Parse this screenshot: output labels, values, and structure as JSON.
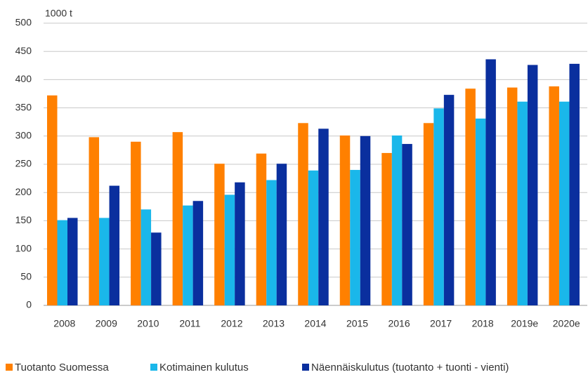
{
  "chart_data": {
    "type": "bar",
    "y_label": "1000 t",
    "categories": [
      "2008",
      "2009",
      "2010",
      "2011",
      "2012",
      "2013",
      "2014",
      "2015",
      "2016",
      "2017",
      "2018",
      "2019e",
      "2020e"
    ],
    "series": [
      {
        "name": "Tuotanto Suomessa",
        "color": "#ff8000",
        "values": [
          372,
          298,
          290,
          307,
          251,
          269,
          323,
          301,
          270,
          323,
          384,
          386,
          388
        ]
      },
      {
        "name": "Kotimainen kulutus",
        "color": "#1ab7ea",
        "values": [
          151,
          155,
          170,
          177,
          196,
          222,
          239,
          240,
          301,
          349,
          331,
          361,
          361
        ]
      },
      {
        "name": "Näennäiskulutus (tuotanto + tuonti - vienti)",
        "color": "#0a2f9e",
        "values": [
          155,
          212,
          129,
          185,
          218,
          251,
          313,
          300,
          286,
          373,
          436,
          426,
          428
        ]
      }
    ],
    "ylim": [
      0,
      500
    ],
    "yticks": [
      0,
      50,
      100,
      150,
      200,
      250,
      300,
      350,
      400,
      450,
      500
    ],
    "grid": true,
    "legend": "bottom"
  }
}
